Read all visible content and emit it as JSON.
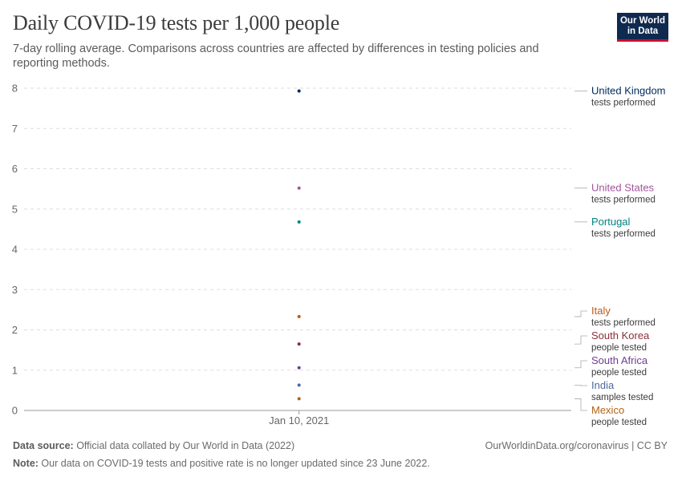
{
  "header": {
    "title": "Daily COVID-19 tests per 1,000 people",
    "subtitle": "7-day rolling average. Comparisons across countries are affected by differences in testing policies and reporting methods."
  },
  "logo": {
    "line1": "Our World",
    "line2": "in Data"
  },
  "footer": {
    "source_label": "Data source:",
    "source_text": " Official data collated by Our World in Data (2022)",
    "note_label": "Note:",
    "note_text": " Our data on COVID-19 tests and positive rate is no longer updated since 23 June 2022.",
    "url_text": "OurWorldinData.org/coronavirus | CC BY"
  },
  "chart_data": {
    "type": "scatter",
    "x": [
      "Jan 10, 2021"
    ],
    "ylim": [
      0,
      8
    ],
    "yticks": [
      0,
      1,
      2,
      3,
      4,
      5,
      6,
      7,
      8
    ],
    "grid": true,
    "legend_placement": "right",
    "series": [
      {
        "name": "United Kingdom",
        "sublabel": "tests performed",
        "values": [
          7.93
        ],
        "color": "#00295b"
      },
      {
        "name": "United States",
        "sublabel": "tests performed",
        "values": [
          5.52
        ],
        "color": "#a2559c"
      },
      {
        "name": "Portugal",
        "sublabel": "tests performed",
        "values": [
          4.68
        ],
        "color": "#00847e"
      },
      {
        "name": "Italy",
        "sublabel": "tests performed",
        "values": [
          2.33
        ],
        "color": "#c05917"
      },
      {
        "name": "South Korea",
        "sublabel": "people tested",
        "values": [
          1.65
        ],
        "color": "#883039"
      },
      {
        "name": "South Africa",
        "sublabel": "people tested",
        "values": [
          1.06
        ],
        "color": "#6d3e91"
      },
      {
        "name": "India",
        "sublabel": "samples tested",
        "values": [
          0.63
        ],
        "color": "#4c6a9c"
      },
      {
        "name": "Mexico",
        "sublabel": "people tested",
        "values": [
          0.29
        ],
        "color": "#b16214"
      }
    ]
  }
}
